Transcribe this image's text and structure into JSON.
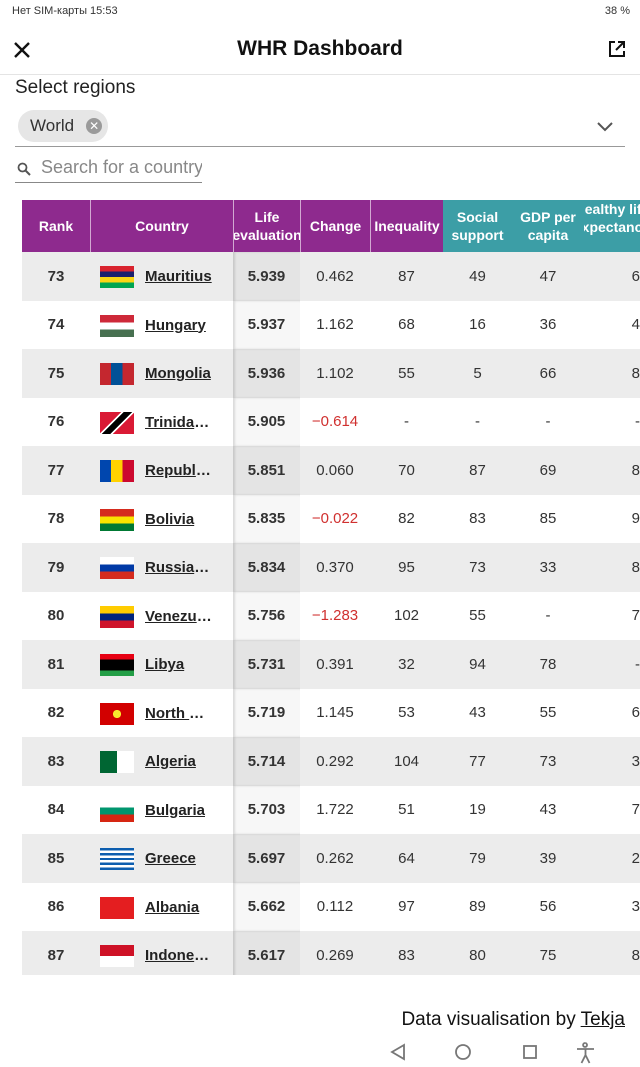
{
  "status_bar": {
    "left": "Нет SIM-карты 15:53",
    "battery": "38 %"
  },
  "header": {
    "title": "WHR Dashboard"
  },
  "filter": {
    "label": "Select regions",
    "chip": "World",
    "search_placeholder": "Search for a country"
  },
  "table": {
    "columns": [
      "Rank",
      "Country",
      "Life evaluation",
      "Change",
      "Inequality",
      "Social support",
      "GDP per capita",
      "Healthy life expectancy"
    ],
    "rows": [
      [
        "73",
        "Mauritius",
        "5.939",
        "0.462",
        "87",
        "49",
        "47",
        "6"
      ],
      [
        "74",
        "Hungary",
        "5.937",
        "1.162",
        "68",
        "16",
        "36",
        "4"
      ],
      [
        "75",
        "Mongolia",
        "5.936",
        "1.102",
        "55",
        "5",
        "66",
        "8"
      ],
      [
        "76",
        "Trinidad and Tobago",
        "5.905",
        "−0.614",
        "-",
        "-",
        "-",
        "-"
      ],
      [
        "77",
        "Republic of Moldova",
        "5.851",
        "0.060",
        "70",
        "87",
        "69",
        "8"
      ],
      [
        "78",
        "Bolivia",
        "5.835",
        "−0.022",
        "82",
        "83",
        "85",
        "9"
      ],
      [
        "79",
        "Russian Federation",
        "5.834",
        "0.370",
        "95",
        "73",
        "33",
        "8"
      ],
      [
        "80",
        "Venezuela",
        "5.756",
        "−1.283",
        "102",
        "55",
        "-",
        "7"
      ],
      [
        "81",
        "Libya",
        "5.731",
        "0.391",
        "32",
        "94",
        "78",
        "-"
      ],
      [
        "82",
        "North Macedonia",
        "5.719",
        "1.145",
        "53",
        "43",
        "55",
        "6"
      ],
      [
        "83",
        "Algeria",
        "5.714",
        "0.292",
        "104",
        "77",
        "73",
        "3"
      ],
      [
        "84",
        "Bulgaria",
        "5.703",
        "1.722",
        "51",
        "19",
        "43",
        "7"
      ],
      [
        "85",
        "Greece",
        "5.697",
        "0.262",
        "64",
        "79",
        "39",
        "2"
      ],
      [
        "86",
        "Albania",
        "5.662",
        "0.112",
        "97",
        "89",
        "56",
        "3"
      ],
      [
        "87",
        "Indonesia",
        "5.617",
        "0.269",
        "83",
        "80",
        "75",
        "8"
      ]
    ]
  },
  "footer": {
    "text": "Data visualisation by",
    "link": "Tekja"
  }
}
